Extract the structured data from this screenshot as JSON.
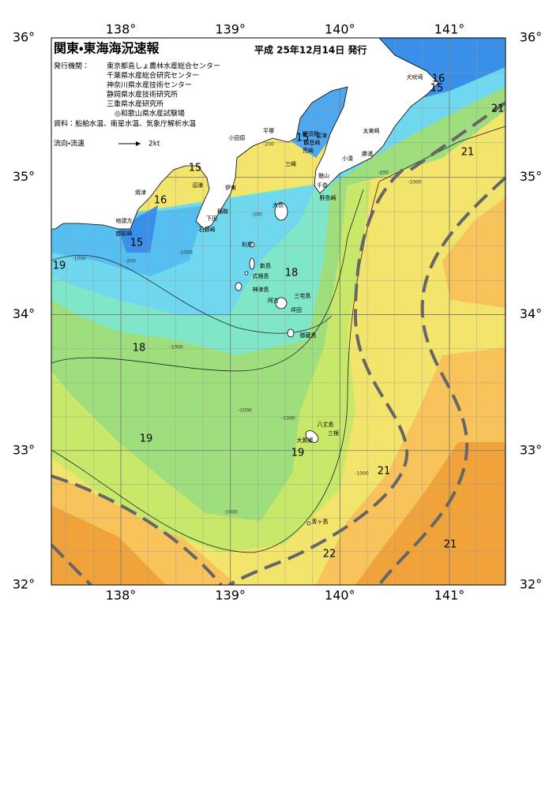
{
  "header": {
    "title": "関東・東海海況速報",
    "date": "平成 25年12月14日 発行",
    "agencies_label": "発行機関：",
    "agencies": [
      "東京都島しょ農林水産総合センター",
      "千葉県水産総合研究センター",
      "神奈川県水産技術センター",
      "静岡県水産技術研究所",
      "三重県水産研究所",
      "◎和歌山県水産試験場"
    ],
    "sources": "資料：船舶水温、衛星水温、気象庁解析水温",
    "current_legend": "流向・流速",
    "current_unit": "2kt"
  },
  "map": {
    "lon_ticks": [
      {
        "value": 138,
        "label": "138°"
      },
      {
        "value": 139,
        "label": "139°"
      },
      {
        "value": 140,
        "label": "140°"
      },
      {
        "value": 141,
        "label": "141°"
      }
    ],
    "lat_ticks": [
      {
        "value": 36,
        "label": "36°"
      },
      {
        "value": 35,
        "label": "35°"
      },
      {
        "value": 34,
        "label": "34°"
      },
      {
        "value": 33,
        "label": "33°"
      },
      {
        "value": 32,
        "label": "32°"
      }
    ],
    "place_names": [
      "犬吠埼",
      "太東崎",
      "勝浦",
      "小湊",
      "野島崎",
      "千倉",
      "館山",
      "富津",
      "観音崎",
      "横須賀",
      "平塚",
      "小田原",
      "荒崎",
      "三崎",
      "伊東",
      "稲取",
      "下田",
      "石廊崎",
      "沼津",
      "焼津",
      "地頭方",
      "御前崎",
      "大島",
      "利島",
      "新島",
      "式根島",
      "神津島",
      "三宅島",
      "阿古",
      "坪田",
      "御蔵島",
      "八丈島",
      "三根",
      "大賀郷",
      "青ヶ島"
    ],
    "isotherm_labels": [
      16,
      15,
      21,
      15,
      21,
      15,
      16,
      15,
      19,
      18,
      18,
      19,
      19,
      21,
      21,
      22
    ],
    "depth_labels": [
      -200,
      -200,
      -200,
      -200,
      -1000,
      -1000,
      -1000,
      -1000,
      -1000,
      -1000,
      -1000,
      -1000
    ]
  }
}
